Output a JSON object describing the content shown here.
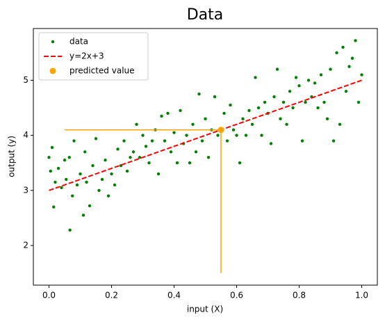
{
  "chart_data": {
    "type": "scatter",
    "title": "Data",
    "x_label": "input (X)",
    "y_label": "output (y)",
    "xlim": [
      -0.05,
      1.05
    ],
    "ylim": [
      1.28,
      5.94
    ],
    "xticks": [
      {
        "value": 0,
        "label": "0.0"
      },
      0.2,
      0.4,
      0.6,
      0.8,
      {
        "value": 1,
        "label": "1.0"
      }
    ],
    "yticks": [
      2,
      3,
      4,
      5
    ],
    "legend": "upper left",
    "series": [
      {
        "name": "data",
        "color": "green",
        "kind": "scatter",
        "x": [
          0.0,
          0.005,
          0.01,
          0.015,
          0.02,
          0.03,
          0.04,
          0.05,
          0.055,
          0.065,
          0.067,
          0.075,
          0.08,
          0.09,
          0.1,
          0.11,
          0.115,
          0.12,
          0.13,
          0.14,
          0.15,
          0.16,
          0.17,
          0.18,
          0.19,
          0.2,
          0.21,
          0.22,
          0.23,
          0.24,
          0.25,
          0.26,
          0.27,
          0.28,
          0.29,
          0.3,
          0.31,
          0.32,
          0.33,
          0.34,
          0.35,
          0.36,
          0.37,
          0.38,
          0.39,
          0.4,
          0.41,
          0.42,
          0.43,
          0.44,
          0.45,
          0.46,
          0.47,
          0.48,
          0.49,
          0.5,
          0.51,
          0.52,
          0.53,
          0.54,
          0.56,
          0.57,
          0.58,
          0.59,
          0.6,
          0.61,
          0.62,
          0.63,
          0.64,
          0.65,
          0.66,
          0.67,
          0.68,
          0.69,
          0.7,
          0.71,
          0.72,
          0.73,
          0.74,
          0.75,
          0.76,
          0.77,
          0.78,
          0.79,
          0.8,
          0.81,
          0.82,
          0.83,
          0.84,
          0.85,
          0.86,
          0.87,
          0.88,
          0.89,
          0.9,
          0.91,
          0.92,
          0.93,
          0.94,
          0.95,
          0.96,
          0.97,
          0.98,
          0.99,
          1.0
        ],
        "values": [
          3.6,
          3.35,
          3.78,
          2.7,
          3.15,
          3.4,
          3.05,
          3.55,
          3.2,
          3.6,
          2.28,
          2.9,
          3.9,
          3.1,
          3.3,
          2.55,
          3.7,
          3.15,
          2.72,
          3.45,
          3.94,
          3.0,
          3.2,
          3.55,
          2.9,
          3.3,
          3.1,
          3.75,
          3.45,
          3.9,
          3.35,
          3.6,
          3.7,
          4.2,
          3.6,
          4.0,
          3.8,
          3.5,
          3.9,
          4.1,
          3.3,
          4.35,
          3.9,
          4.4,
          3.7,
          4.05,
          3.5,
          4.45,
          3.85,
          4.0,
          3.5,
          4.2,
          3.7,
          4.75,
          3.9,
          4.3,
          3.6,
          4.1,
          4.7,
          4.0,
          4.4,
          3.9,
          4.55,
          4.1,
          4.0,
          3.5,
          4.3,
          4.0,
          4.45,
          4.2,
          5.05,
          4.5,
          4.0,
          4.6,
          4.4,
          3.85,
          4.7,
          5.2,
          4.3,
          4.6,
          4.2,
          4.8,
          4.5,
          5.05,
          4.9,
          3.9,
          4.6,
          5.0,
          4.7,
          4.95,
          4.5,
          5.1,
          4.6,
          4.3,
          5.2,
          3.9,
          5.5,
          4.2,
          5.6,
          4.8,
          5.25,
          5.4,
          5.72,
          4.6,
          5.1
        ]
      },
      {
        "name": "y=2x+3",
        "color": "red",
        "kind": "line",
        "x": [
          0,
          1
        ],
        "values": [
          3,
          5
        ]
      },
      {
        "name": "predicted value",
        "color": "orange",
        "kind": "point",
        "x": [
          0.55
        ],
        "values": [
          4.1
        ]
      }
    ],
    "hline": {
      "y": 4.1,
      "xmin": 0.05,
      "xmax": 0.55,
      "color": "orange"
    },
    "vline": {
      "x": 0.55,
      "ymin": 1.5,
      "ymax": 4.1,
      "color": "orange"
    }
  }
}
